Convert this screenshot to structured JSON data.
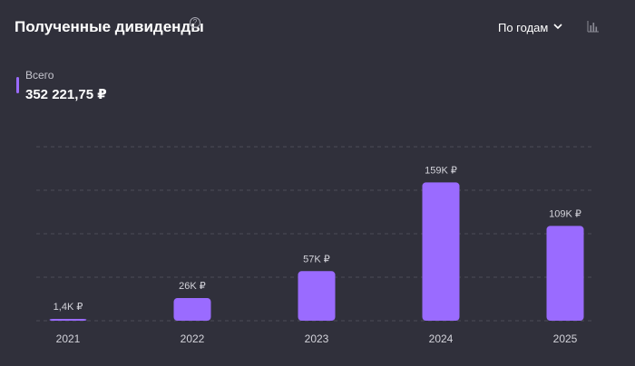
{
  "header": {
    "title": "Полученные дивиденды",
    "help_icon": "question-circle-icon",
    "period_select": "По годам",
    "chart_toggle_icon": "bar-chart-icon"
  },
  "total": {
    "label": "Всего",
    "value": "352 221,75 ₽",
    "marker_color": "#9a6bff"
  },
  "chart_data": {
    "type": "bar",
    "categories": [
      "2021",
      "2022",
      "2023",
      "2024",
      "2025"
    ],
    "values": [
      1.4,
      26,
      57,
      159,
      109
    ],
    "data_labels": [
      "1,4K ₽",
      "26K ₽",
      "57K ₽",
      "159K ₽",
      "109K ₽"
    ],
    "ylim": [
      0,
      200
    ],
    "grid": true,
    "bar_color": "#9a6bff"
  }
}
